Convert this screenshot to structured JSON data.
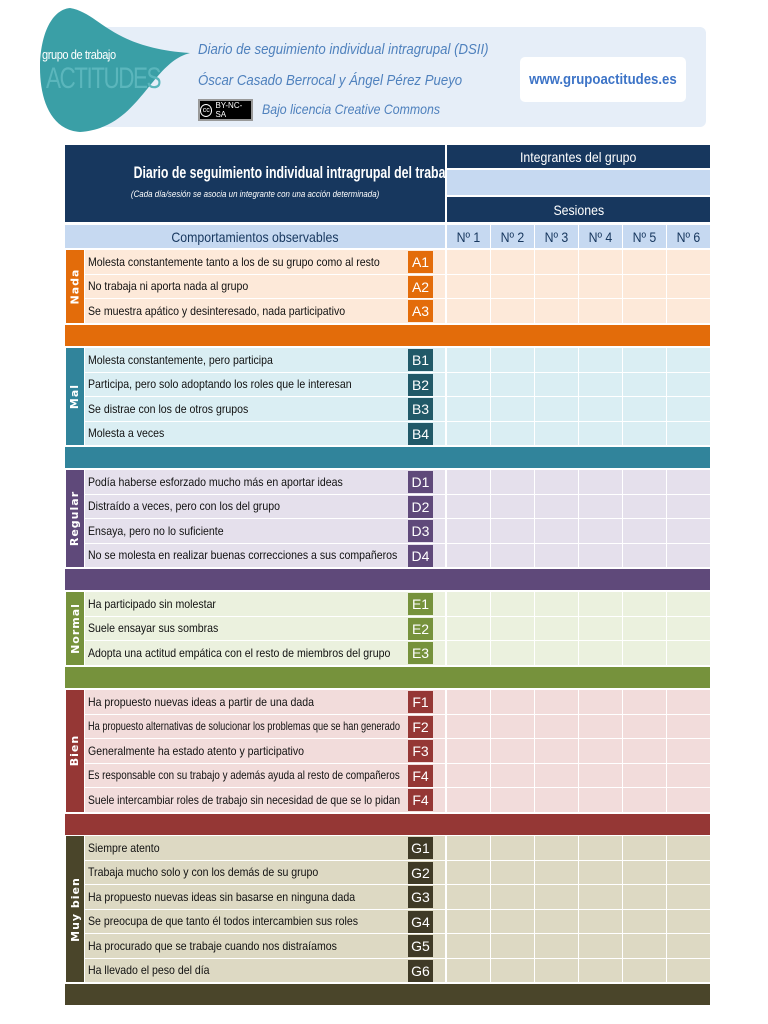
{
  "header": {
    "logo_line1": "grupo de trabajo",
    "logo_line2": "ACTITUDES",
    "title": "Diario de seguimiento individual intragrupal (DSII)",
    "authors": "Óscar Casado Berrocal y Ángel Pérez Pueyo",
    "license_badge": "BY-NC-SA",
    "license_text": "Bajo licencia Creative Commons",
    "website": "www.grupoactitudes.es"
  },
  "table": {
    "title": "Diario de seguimiento individual intragrupal del trabajo diario",
    "subtitle": "(Cada día/sesión se asocia un integrante con una acción determinada)",
    "members_label": "Integrantes del grupo",
    "sessions_label": "Sesiones",
    "behaviours_label": "Comportamientos observables",
    "sessions": [
      "Nº 1",
      "Nº 2",
      "Nº 3",
      "Nº 4",
      "Nº 5",
      "Nº 6"
    ]
  },
  "sections": [
    {
      "label": "Nada",
      "color": "#e36c0a",
      "light": "#fde9d9",
      "code_color": "#e36c0a",
      "items": [
        {
          "text": "Molesta constantemente tanto a los de su grupo como al resto",
          "code": "A1"
        },
        {
          "text": "No trabaja ni aporta nada al grupo",
          "code": "A2"
        },
        {
          "text": "Se muestra apático y desinteresado, nada participativo",
          "code": "A3"
        }
      ]
    },
    {
      "label": "Mal",
      "color": "#31849b",
      "light": "#daeef3",
      "code_color": "#215968",
      "items": [
        {
          "text": "Molesta constantemente, pero participa",
          "code": "B1"
        },
        {
          "text": "Participa, pero solo adoptando los roles que le interesan",
          "code": "B2"
        },
        {
          "text": "Se distrae con los de otros grupos",
          "code": "B3"
        },
        {
          "text": "Molesta a veces",
          "code": "B4"
        }
      ]
    },
    {
      "label": "Regular",
      "color": "#5f497a",
      "light": "#e5e0ec",
      "code_color": "#5f497a",
      "items": [
        {
          "text": "Podía haberse esforzado mucho más en aportar ideas",
          "code": "D1"
        },
        {
          "text": "Distraído a veces, pero con los del grupo",
          "code": "D2"
        },
        {
          "text": "Ensaya, pero no lo suficiente",
          "code": "D3"
        },
        {
          "text": "No se molesta en realizar buenas correcciones a sus compañeros",
          "code": "D4"
        }
      ]
    },
    {
      "label": "Normal",
      "color": "#76923c",
      "light": "#ebf1de",
      "code_color": "#76923c",
      "items": [
        {
          "text": "Ha participado sin molestar",
          "code": "E1"
        },
        {
          "text": "Suele ensayar sus sombras",
          "code": "E2"
        },
        {
          "text": "Adopta una actitud empática con el resto de miembros del grupo",
          "code": "E3"
        }
      ]
    },
    {
      "label": "Bien",
      "color": "#953735",
      "light": "#f2dcdb",
      "code_color": "#953735",
      "items": [
        {
          "text": "Ha propuesto nuevas ideas a partir de una dada",
          "code": "F1"
        },
        {
          "text": "Ha propuesto alternativas de solucionar los problemas que se han generado",
          "code": "F2"
        },
        {
          "text": "Generalmente ha estado atento y participativo",
          "code": "F3"
        },
        {
          "text": "Es responsable con su trabajo y además ayuda al resto de compañeros",
          "code": "F4"
        },
        {
          "text": "Suele intercambiar roles de trabajo sin necesidad de que se lo pidan",
          "code": "F4"
        }
      ]
    },
    {
      "label": "Muy bien",
      "color": "#4a452a",
      "light": "#ddd9c3",
      "code_color": "#3f3a26",
      "items": [
        {
          "text": "Siempre atento",
          "code": "G1"
        },
        {
          "text": "Trabaja mucho solo y con los demás de su grupo",
          "code": "G2"
        },
        {
          "text": "Ha propuesto nuevas ideas sin basarse en ninguna dada",
          "code": "G3"
        },
        {
          "text": "Se preocupa de que tanto él todos intercambien sus roles",
          "code": "G4"
        },
        {
          "text": "Ha procurado que se trabaje cuando nos distraíamos",
          "code": "G5"
        },
        {
          "text": "Ha llevado el peso del día",
          "code": "G6"
        }
      ]
    }
  ]
}
